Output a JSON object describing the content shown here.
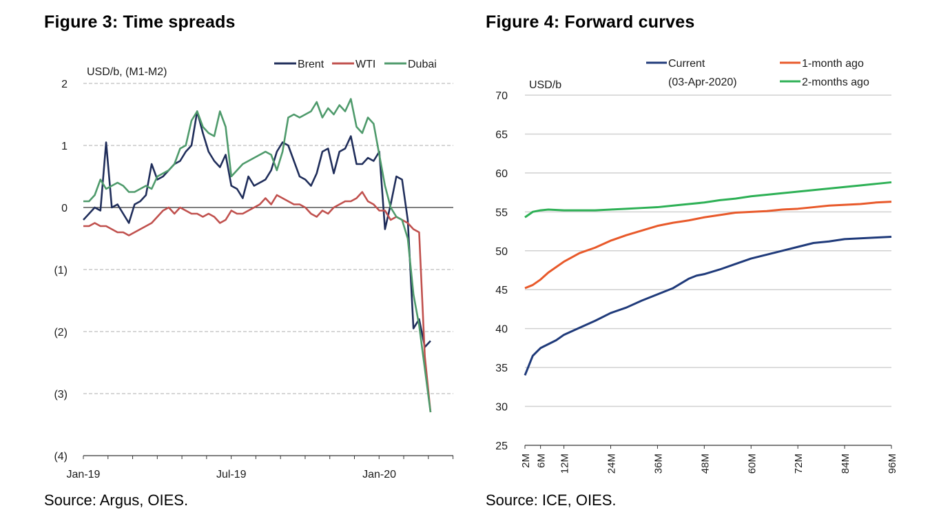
{
  "figure3": {
    "title": "Figure 3: Time spreads",
    "source": "Source: Argus, OIES."
  },
  "figure4": {
    "title": "Figure 4: Forward curves",
    "source": "Source: ICE, OIES."
  },
  "chart_data": [
    {
      "type": "line",
      "ylabel": "USD/b, (M1-M2)",
      "ylim": [
        -4,
        2
      ],
      "y_ticks": [
        2,
        1,
        0,
        -1,
        -2,
        -3,
        -4
      ],
      "y_tick_labels": [
        "2",
        "1",
        "0",
        "(1)",
        "(2)",
        "(3)",
        "(4)"
      ],
      "x_tick_labels": [
        "Jan-19",
        "Jul-19",
        "Jan-20"
      ],
      "x_tick_weeks": [
        0,
        26,
        52
      ],
      "x_range_weeks": [
        0,
        65
      ],
      "x_unit": "weeks",
      "grid": true,
      "legend_position": "top-right",
      "series": [
        {
          "name": "Brent",
          "color": "#1f2d5a",
          "values": [
            -0.2,
            -0.1,
            0.0,
            -0.05,
            1.05,
            0.0,
            0.05,
            -0.1,
            -0.25,
            0.05,
            0.1,
            0.2,
            0.7,
            0.45,
            0.5,
            0.6,
            0.7,
            0.75,
            0.9,
            1.0,
            1.55,
            1.2,
            0.9,
            0.75,
            0.65,
            0.85,
            0.35,
            0.3,
            0.15,
            0.5,
            0.35,
            0.4,
            0.45,
            0.6,
            0.9,
            1.05,
            1.0,
            0.75,
            0.5,
            0.45,
            0.35,
            0.55,
            0.9,
            0.95,
            0.55,
            0.9,
            0.95,
            1.15,
            0.7,
            0.7,
            0.8,
            0.75,
            0.9,
            -0.35,
            0.05,
            0.5,
            0.45,
            -0.2,
            -1.95,
            -1.8,
            -2.25,
            -2.15
          ]
        },
        {
          "name": "WTI",
          "color": "#c0504d",
          "values": [
            -0.3,
            -0.3,
            -0.25,
            -0.3,
            -0.3,
            -0.35,
            -0.4,
            -0.4,
            -0.45,
            -0.4,
            -0.35,
            -0.3,
            -0.25,
            -0.15,
            -0.05,
            0.0,
            -0.1,
            0.0,
            -0.05,
            -0.1,
            -0.1,
            -0.15,
            -0.1,
            -0.15,
            -0.25,
            -0.2,
            -0.05,
            -0.1,
            -0.1,
            -0.05,
            0.0,
            0.05,
            0.15,
            0.05,
            0.2,
            0.15,
            0.1,
            0.05,
            0.05,
            0.0,
            -0.1,
            -0.15,
            -0.05,
            -0.1,
            0.0,
            0.05,
            0.1,
            0.1,
            0.15,
            0.25,
            0.1,
            0.05,
            -0.05,
            -0.05,
            -0.2,
            -0.15,
            -0.2,
            -0.25,
            -0.35,
            -0.4,
            -2.4,
            -3.3
          ]
        },
        {
          "name": "Dubai",
          "color": "#4e9a6b",
          "values": [
            0.1,
            0.1,
            0.2,
            0.45,
            0.3,
            0.35,
            0.4,
            0.35,
            0.25,
            0.25,
            0.3,
            0.35,
            0.3,
            0.5,
            0.55,
            0.6,
            0.7,
            0.95,
            1.0,
            1.4,
            1.55,
            1.3,
            1.2,
            1.15,
            1.55,
            1.3,
            0.5,
            0.6,
            0.7,
            0.75,
            0.8,
            0.85,
            0.9,
            0.85,
            0.6,
            0.9,
            1.45,
            1.5,
            1.45,
            1.5,
            1.55,
            1.7,
            1.45,
            1.6,
            1.5,
            1.65,
            1.55,
            1.75,
            1.3,
            1.2,
            1.45,
            1.35,
            0.85,
            0.35,
            0.0,
            -0.15,
            -0.2,
            -0.5,
            -1.4,
            -1.9,
            -2.6,
            -3.3
          ]
        }
      ]
    },
    {
      "type": "line",
      "ylabel": "USD/b",
      "ylim": [
        25,
        70
      ],
      "y_ticks": [
        25,
        30,
        35,
        40,
        45,
        50,
        55,
        60,
        65,
        70
      ],
      "x_unit": "contract month",
      "x_range": [
        2,
        96
      ],
      "x_tick_values": [
        2,
        6,
        12,
        24,
        36,
        48,
        60,
        72,
        84,
        96
      ],
      "x_tick_labels": [
        "2M",
        "6M",
        "12M",
        "24M",
        "36M",
        "48M",
        "60M",
        "72M",
        "84M",
        "96M"
      ],
      "grid": true,
      "legend_position": "top",
      "legend_note": "(03-Apr-2020)",
      "series": [
        {
          "name": "Current",
          "color": "#1f3a7a",
          "x": [
            2,
            4,
            6,
            8,
            10,
            12,
            16,
            20,
            24,
            28,
            32,
            36,
            40,
            44,
            46,
            48,
            52,
            56,
            60,
            64,
            68,
            72,
            76,
            80,
            84,
            88,
            92,
            96
          ],
          "values": [
            34.0,
            36.5,
            37.5,
            38.0,
            38.5,
            39.2,
            40.1,
            41.0,
            42.0,
            42.7,
            43.6,
            44.4,
            45.2,
            46.4,
            46.8,
            47.0,
            47.6,
            48.3,
            49.0,
            49.5,
            50.0,
            50.5,
            51.0,
            51.2,
            51.5,
            51.6,
            51.7,
            51.8
          ]
        },
        {
          "name": "1-month ago",
          "color": "#e8592a",
          "x": [
            2,
            4,
            6,
            8,
            12,
            16,
            20,
            24,
            28,
            32,
            36,
            40,
            44,
            48,
            52,
            56,
            60,
            64,
            68,
            72,
            76,
            80,
            84,
            88,
            92,
            96
          ],
          "values": [
            45.2,
            45.6,
            46.3,
            47.2,
            48.6,
            49.7,
            50.4,
            51.3,
            52.0,
            52.6,
            53.2,
            53.6,
            53.9,
            54.3,
            54.6,
            54.9,
            55.0,
            55.1,
            55.3,
            55.4,
            55.6,
            55.8,
            55.9,
            56.0,
            56.2,
            56.3
          ]
        },
        {
          "name": "2-months ago",
          "color": "#2db055",
          "x": [
            2,
            4,
            6,
            8,
            12,
            16,
            20,
            24,
            28,
            32,
            36,
            40,
            44,
            48,
            52,
            56,
            60,
            64,
            68,
            72,
            76,
            80,
            84,
            88,
            92,
            96
          ],
          "values": [
            54.3,
            55.0,
            55.2,
            55.3,
            55.2,
            55.2,
            55.2,
            55.3,
            55.4,
            55.5,
            55.6,
            55.8,
            56.0,
            56.2,
            56.5,
            56.7,
            57.0,
            57.2,
            57.4,
            57.6,
            57.8,
            58.0,
            58.2,
            58.4,
            58.6,
            58.8
          ]
        }
      ]
    }
  ]
}
